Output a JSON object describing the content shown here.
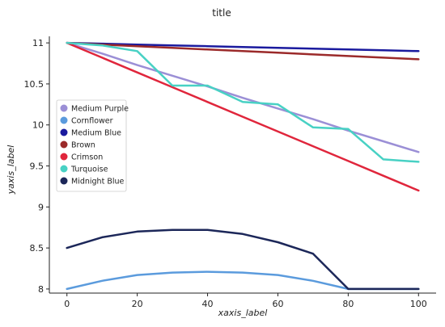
{
  "chart_data": {
    "type": "line",
    "title": "title",
    "xlabel": "xaxis_label",
    "ylabel": "yaxis_label",
    "xlim": [
      -5,
      105
    ],
    "ylim": [
      7.95,
      11.08
    ],
    "xticks": [
      "0",
      "20",
      "40",
      "60",
      "80",
      "100"
    ],
    "yticks": [
      "8",
      "8.5",
      "9",
      "9.5",
      "10",
      "10.5",
      "11"
    ],
    "grid": false,
    "legend_position": "center",
    "x": [
      0,
      10,
      20,
      30,
      40,
      50,
      60,
      70,
      80,
      90,
      100
    ],
    "series": [
      {
        "name": "Medium Purple",
        "color": "#9b8fd6",
        "values": [
          11.0,
          10.87,
          10.73,
          10.6,
          10.47,
          10.33,
          10.2,
          10.07,
          9.93,
          9.8,
          9.67
        ]
      },
      {
        "name": "Cornflower",
        "color": "#5b9bdd",
        "values": [
          8.0,
          8.1,
          8.17,
          8.2,
          8.21,
          8.2,
          8.17,
          8.1,
          8.0,
          8.0,
          8.0
        ]
      },
      {
        "name": "Medium Blue",
        "color": "#1a1a9e",
        "values": [
          11.0,
          10.99,
          10.98,
          10.97,
          10.96,
          10.95,
          10.94,
          10.93,
          10.92,
          10.91,
          10.9
        ]
      },
      {
        "name": "Brown",
        "color": "#9b2a2a",
        "values": [
          11.0,
          10.98,
          10.96,
          10.94,
          10.92,
          10.9,
          10.88,
          10.86,
          10.84,
          10.82,
          10.8
        ]
      },
      {
        "name": "Crimson",
        "color": "#e0263c",
        "values": [
          11.0,
          10.82,
          10.64,
          10.46,
          10.28,
          10.1,
          9.92,
          9.74,
          9.56,
          9.38,
          9.2
        ]
      },
      {
        "name": "Turquoise",
        "color": "#48d1c4",
        "values": [
          11.0,
          10.97,
          10.9,
          10.48,
          10.48,
          10.28,
          10.25,
          9.97,
          9.95,
          9.58,
          9.55
        ]
      },
      {
        "name": "Midnight Blue",
        "color": "#1c2759",
        "values": [
          8.5,
          8.63,
          8.7,
          8.72,
          8.72,
          8.67,
          8.57,
          8.43,
          8.0,
          8.0,
          8.0
        ]
      }
    ]
  }
}
